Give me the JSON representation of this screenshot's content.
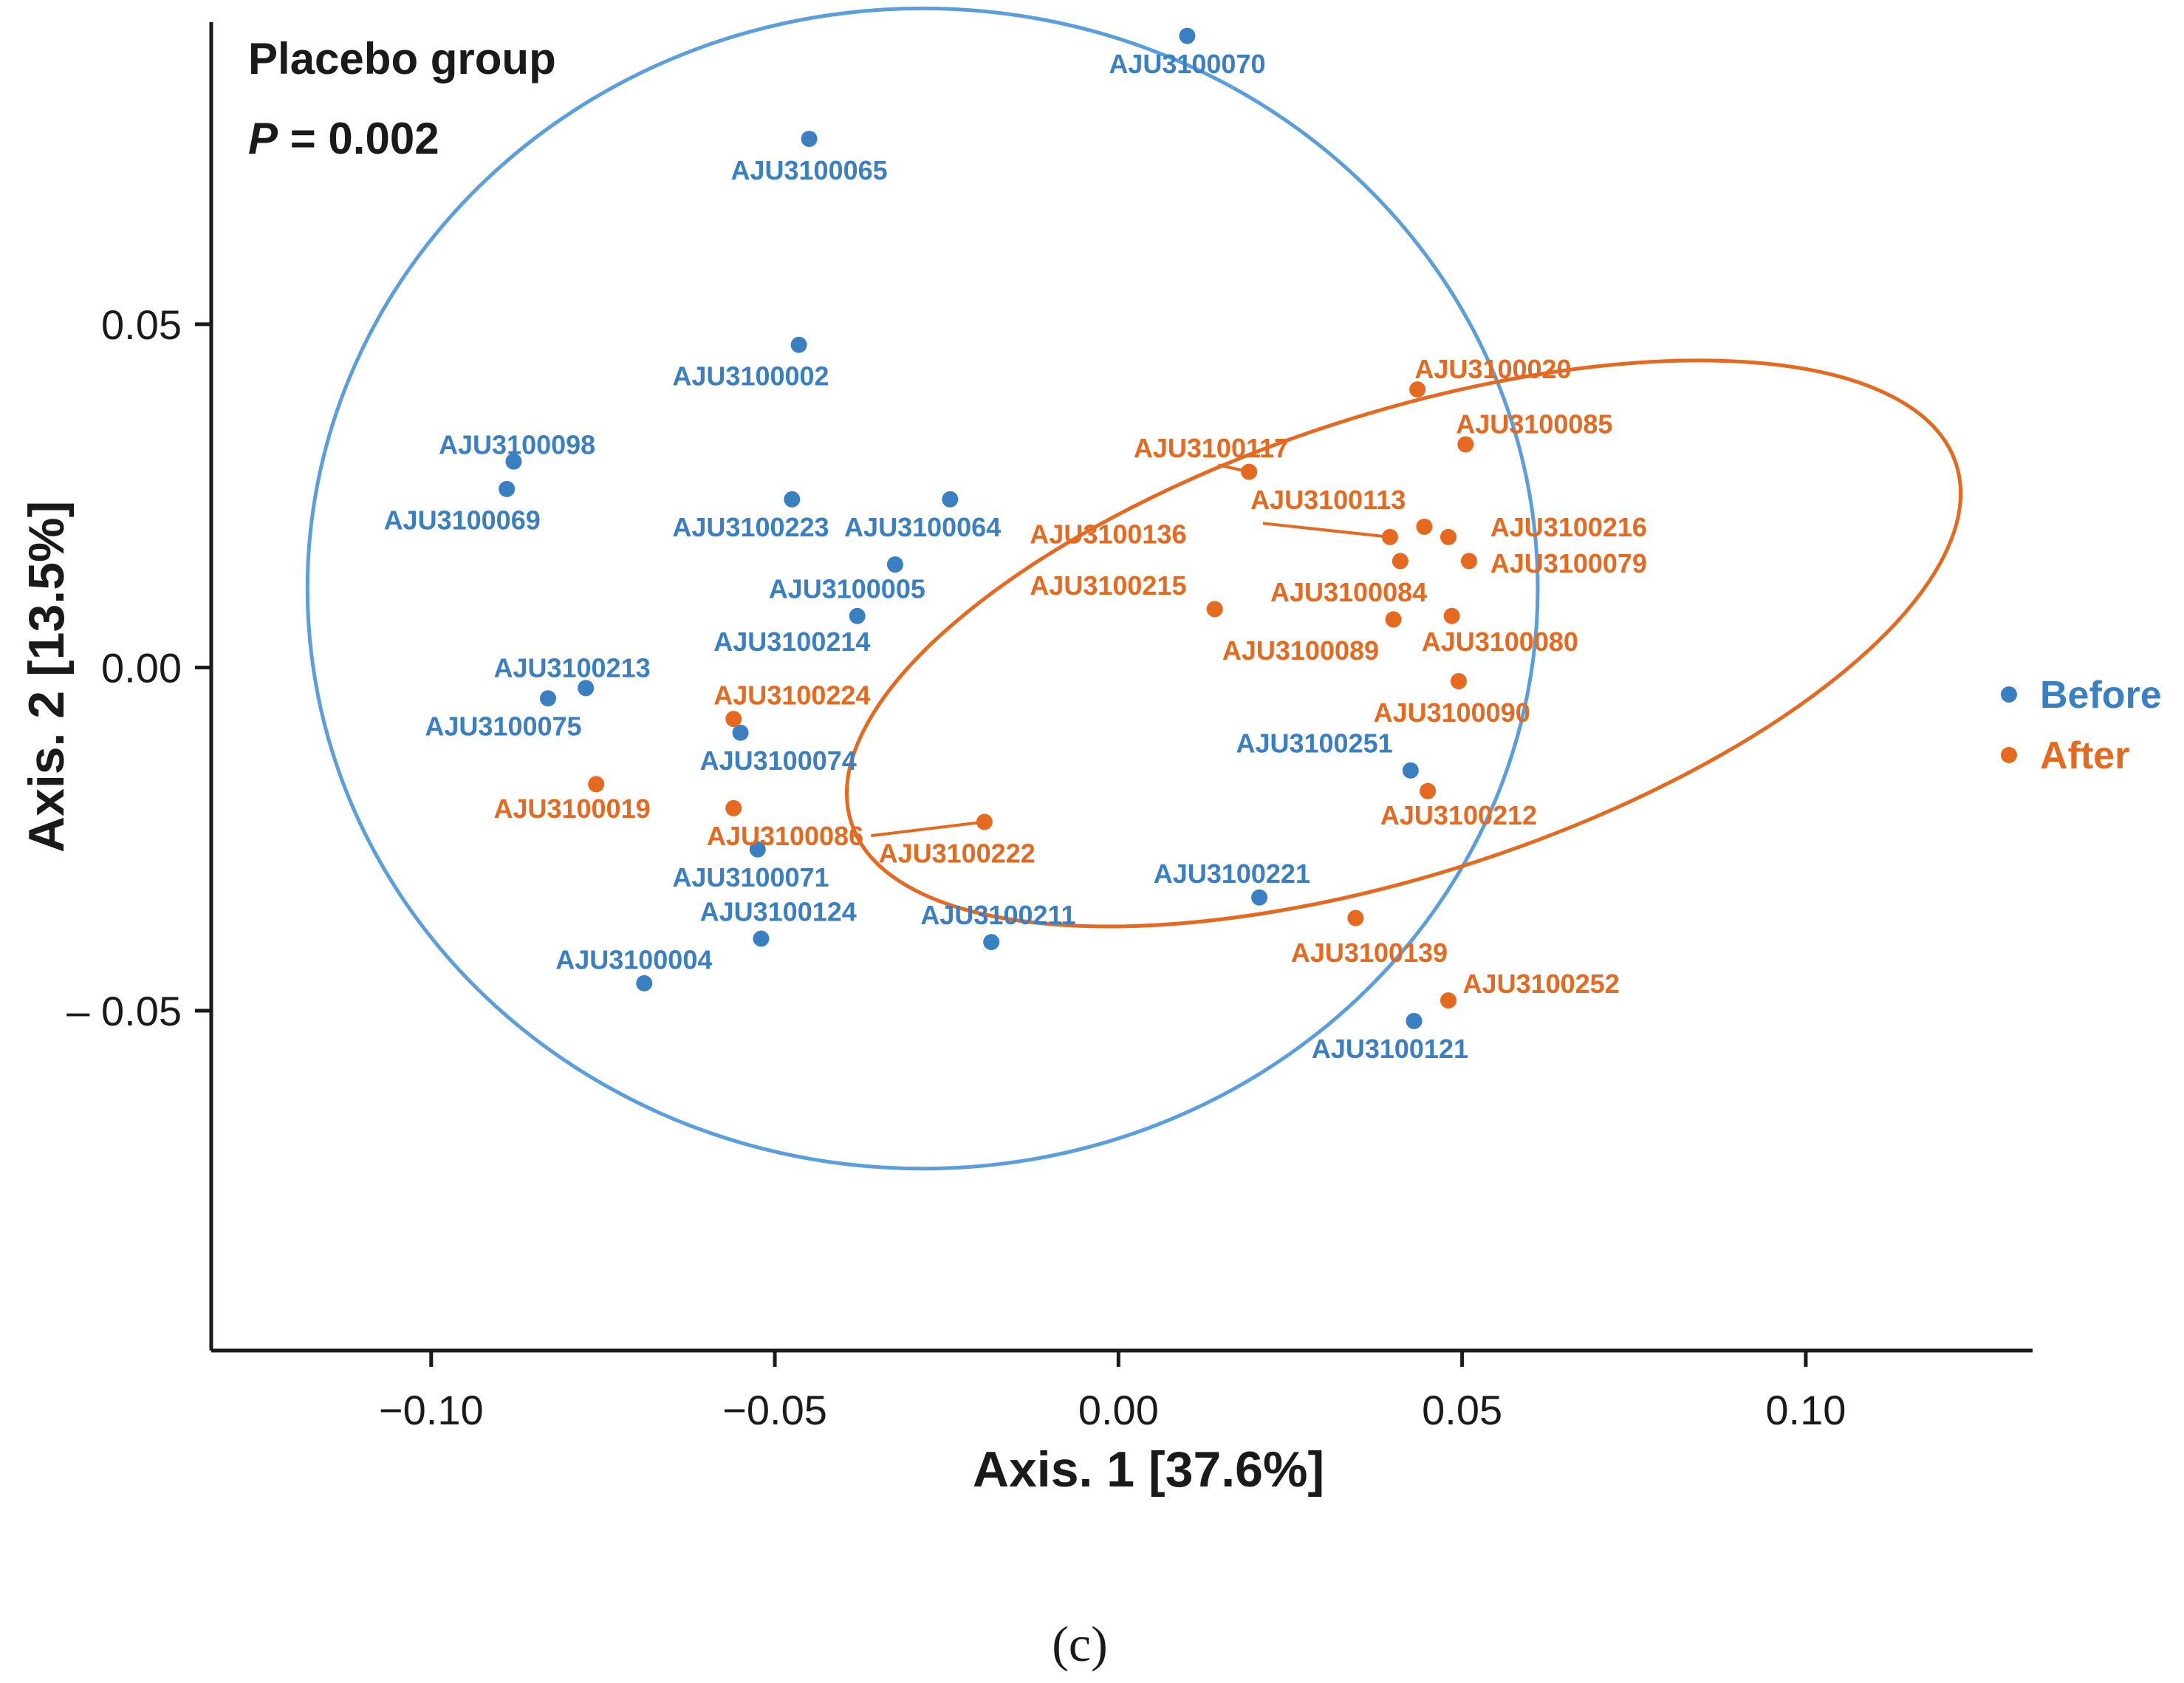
{
  "chart_data": {
    "type": "scatter",
    "title": "Placebo group",
    "annotation": {
      "symbol": "P",
      "text": " = 0.002"
    },
    "xlabel": "Axis. 1 [37.6%]",
    "ylabel": "Axis. 2 [13.5%]",
    "xlim": [
      -0.132,
      0.133
    ],
    "ylim": [
      -0.0995,
      0.094
    ],
    "xticks": [
      -0.1,
      -0.05,
      0.0,
      0.05,
      0.1
    ],
    "xtick_labels": [
      "−0.10",
      "−0.05",
      "0.00",
      "0.05",
      "0.10"
    ],
    "yticks": [
      0.05,
      0.0,
      -0.05
    ],
    "ytick_labels": [
      "0.05",
      "0.00",
      "– 0.05"
    ],
    "grid": false,
    "legend_position": "right",
    "caption": "(c)",
    "series": [
      {
        "name": "Before",
        "color": "#3a7fc1",
        "ellipse_color": "#5a9fdc",
        "ellipse": {
          "cx": -0.0285,
          "cy": 0.0115,
          "rx": 0.0895,
          "ry": 0.0845,
          "angle": 0
        },
        "points": [
          {
            "label": "AJU3100070",
            "x": 0.01,
            "y": 0.092,
            "lx": 0.01,
            "ly": 0.088
          },
          {
            "label": "AJU3100065",
            "x": -0.045,
            "y": 0.077,
            "lx": -0.045,
            "ly": 0.0725
          },
          {
            "label": "AJU3100002",
            "x": -0.0465,
            "y": 0.047,
            "lx": -0.0535,
            "ly": 0.0425
          },
          {
            "label": "AJU3100098",
            "x": -0.088,
            "y": 0.03,
            "lx": -0.0875,
            "ly": 0.0325
          },
          {
            "label": "AJU3100069",
            "x": -0.089,
            "y": 0.026,
            "lx": -0.0955,
            "ly": 0.0215
          },
          {
            "label": "AJU3100223",
            "x": -0.0475,
            "y": 0.0245,
            "lx": -0.0535,
            "ly": 0.0205
          },
          {
            "label": "AJU3100064",
            "x": -0.0245,
            "y": 0.0245,
            "lx": -0.0285,
            "ly": 0.0205
          },
          {
            "label": "AJU3100005",
            "x": -0.0325,
            "y": 0.015,
            "lx": -0.0395,
            "ly": 0.0115
          },
          {
            "label": "AJU3100214",
            "x": -0.038,
            "y": 0.0075,
            "lx": -0.0475,
            "ly": 0.0038
          },
          {
            "label": "AJU3100213",
            "x": -0.0775,
            "y": -0.003,
            "lx": -0.0795,
            "ly": 0.0
          },
          {
            "label": "AJU3100075",
            "x": -0.083,
            "y": -0.0045,
            "lx": -0.0895,
            "ly": -0.0085
          },
          {
            "label": "AJU3100074",
            "x": -0.055,
            "y": -0.0095,
            "lx": -0.0495,
            "ly": -0.0135
          },
          {
            "label": "AJU3100071",
            "x": -0.0525,
            "y": -0.0265,
            "lx": -0.0535,
            "ly": -0.0305
          },
          {
            "label": "AJU3100124",
            "x": -0.052,
            "y": -0.0395,
            "lx": -0.0495,
            "ly": -0.0355
          },
          {
            "label": "AJU3100211",
            "x": -0.0185,
            "y": -0.04,
            "lx": -0.0175,
            "ly": -0.036
          },
          {
            "label": "AJU3100004",
            "x": -0.069,
            "y": -0.046,
            "lx": -0.0705,
            "ly": -0.0425
          },
          {
            "label": "AJU3100221",
            "x": 0.0205,
            "y": -0.0335,
            "lx": 0.0165,
            "ly": -0.03
          },
          {
            "label": "AJU3100251",
            "x": 0.0425,
            "y": -0.015,
            "lx": 0.0285,
            "ly": -0.011
          },
          {
            "label": "AJU3100121",
            "x": 0.043,
            "y": -0.0515,
            "lx": 0.0395,
            "ly": -0.0555
          }
        ]
      },
      {
        "name": "After",
        "color": "#e56a20",
        "ellipse_color": "#e56a20",
        "ellipse": {
          "cx": 0.0415,
          "cy": 0.0035,
          "rx": 0.0845,
          "ry": 0.0335,
          "angle": -18
        },
        "points": [
          {
            "label": "AJU3100020",
            "x": 0.0435,
            "y": 0.0405,
            "lx": 0.0545,
            "ly": 0.0435
          },
          {
            "label": "AJU3100085",
            "x": 0.0505,
            "y": 0.0325,
            "lx": 0.0605,
            "ly": 0.0355
          },
          {
            "label": "AJU3100117",
            "x": 0.019,
            "y": 0.0285,
            "lx": 0.0135,
            "ly": 0.032,
            "leader": [
              0.0145,
              0.0295
            ]
          },
          {
            "label": "AJU3100113",
            "x": 0.0445,
            "y": 0.0205,
            "lx": 0.0305,
            "ly": 0.0245
          },
          {
            "label": "AJU3100136",
            "x": 0.0395,
            "y": 0.019,
            "lx": -0.0015,
            "ly": 0.0195,
            "leader": [
              0.021,
              0.021
            ]
          },
          {
            "label": "AJU3100216",
            "x": 0.048,
            "y": 0.019,
            "lx": 0.0655,
            "ly": 0.0205
          },
          {
            "label": "AJU3100079",
            "x": 0.051,
            "y": 0.0155,
            "lx": 0.0655,
            "ly": 0.0152
          },
          {
            "label": "AJU3100215",
            "x": 0.014,
            "y": 0.0085,
            "lx": -0.0015,
            "ly": 0.012
          },
          {
            "label": "AJU3100084",
            "x": 0.04,
            "y": 0.007,
            "lx": 0.0335,
            "ly": 0.011
          },
          {
            "label": "AJU3100089",
            "x": 0.041,
            "y": 0.0155,
            "lx": 0.0265,
            "ly": 0.0025
          },
          {
            "label": "AJU3100080",
            "x": 0.0485,
            "y": 0.0075,
            "lx": 0.0555,
            "ly": 0.0038
          },
          {
            "label": "AJU3100090",
            "x": 0.0495,
            "y": -0.002,
            "lx": 0.0485,
            "ly": -0.0065
          },
          {
            "label": "AJU3100224",
            "x": -0.056,
            "y": -0.0075,
            "lx": -0.0475,
            "ly": -0.004
          },
          {
            "label": "AJU3100019",
            "x": -0.076,
            "y": -0.017,
            "lx": -0.0795,
            "ly": -0.0205
          },
          {
            "label": "AJU3100086",
            "x": -0.056,
            "y": -0.0205,
            "lx": -0.0485,
            "ly": -0.0245
          },
          {
            "label": "AJU3100222",
            "x": -0.0195,
            "y": -0.0225,
            "lx": -0.0235,
            "ly": -0.027,
            "leader": [
              -0.036,
              -0.0245
            ]
          },
          {
            "label": "AJU3100212",
            "x": 0.045,
            "y": -0.018,
            "lx": 0.0495,
            "ly": -0.0215
          },
          {
            "label": "AJU3100139",
            "x": 0.0345,
            "y": -0.0365,
            "lx": 0.0365,
            "ly": -0.0415
          },
          {
            "label": "AJU3100252",
            "x": 0.048,
            "y": -0.0485,
            "lx": 0.0615,
            "ly": -0.046
          }
        ]
      }
    ]
  }
}
